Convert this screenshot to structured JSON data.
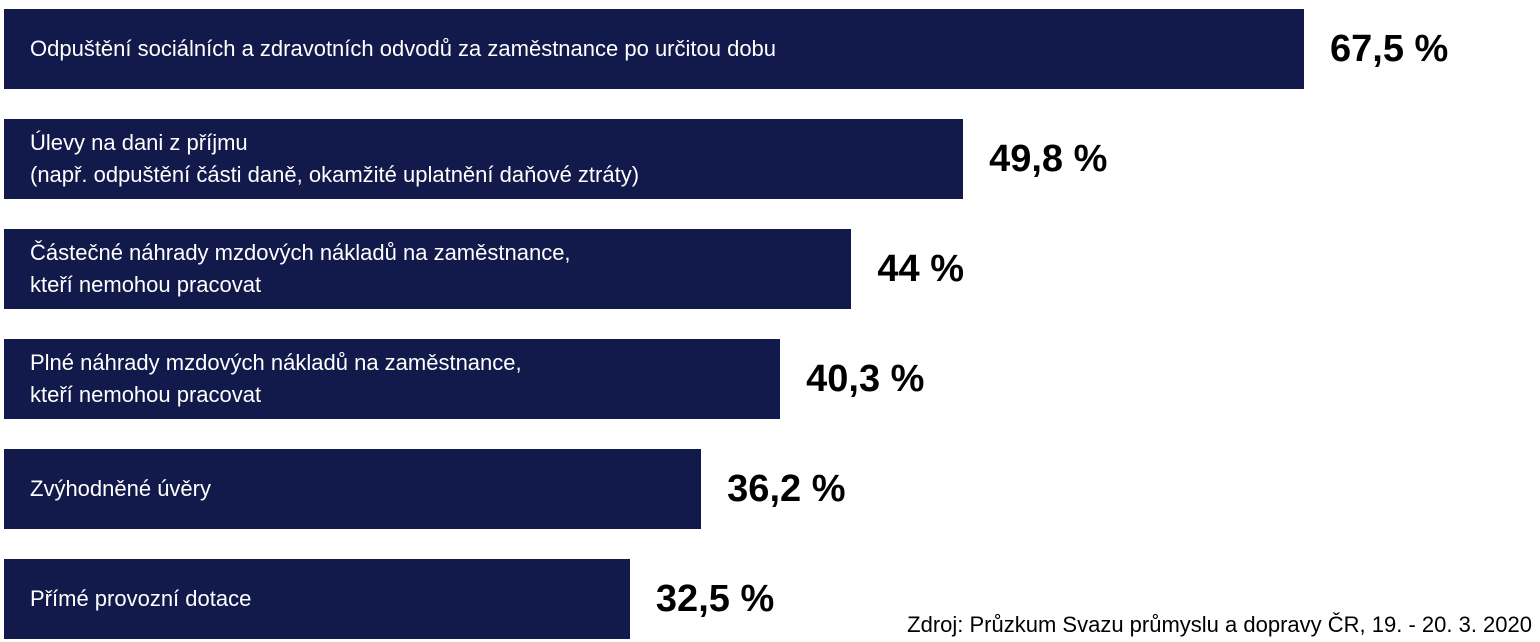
{
  "chart_data": {
    "type": "bar",
    "orientation": "horizontal",
    "categories": [
      [
        "Odpuštění sociálních a zdravotních odvodů za zaměstnance po určitou dobu"
      ],
      [
        "Úlevy na dani z příjmu",
        "(např. odpuštění části daně, okamžité uplatnění daňové ztráty)"
      ],
      [
        "Částečné náhrady mzdových nákladů na zaměstnance,",
        "kteří nemohou pracovat"
      ],
      [
        "Plné náhrady mzdových nákladů na zaměstnance,",
        "kteří nemohou pracovat"
      ],
      [
        "Zvýhodněné úvěry"
      ],
      [
        "Přímé provozní dotace"
      ]
    ],
    "values": [
      67.5,
      49.8,
      44,
      40.3,
      36.2,
      32.5
    ],
    "value_labels": [
      "67,5 %",
      "49,8 %",
      "44 %",
      "40,3 %",
      "36,2 %",
      "32,5 %"
    ],
    "unit": "%",
    "bar_color": "#111a4a",
    "label_color": "#ffffff",
    "value_color": "#000000",
    "grid": false,
    "axes_visible": false
  },
  "source_note": "Zdroj: Průzkum Svazu průmyslu a dopravy ČR, 19. - 20. 3. 2020"
}
